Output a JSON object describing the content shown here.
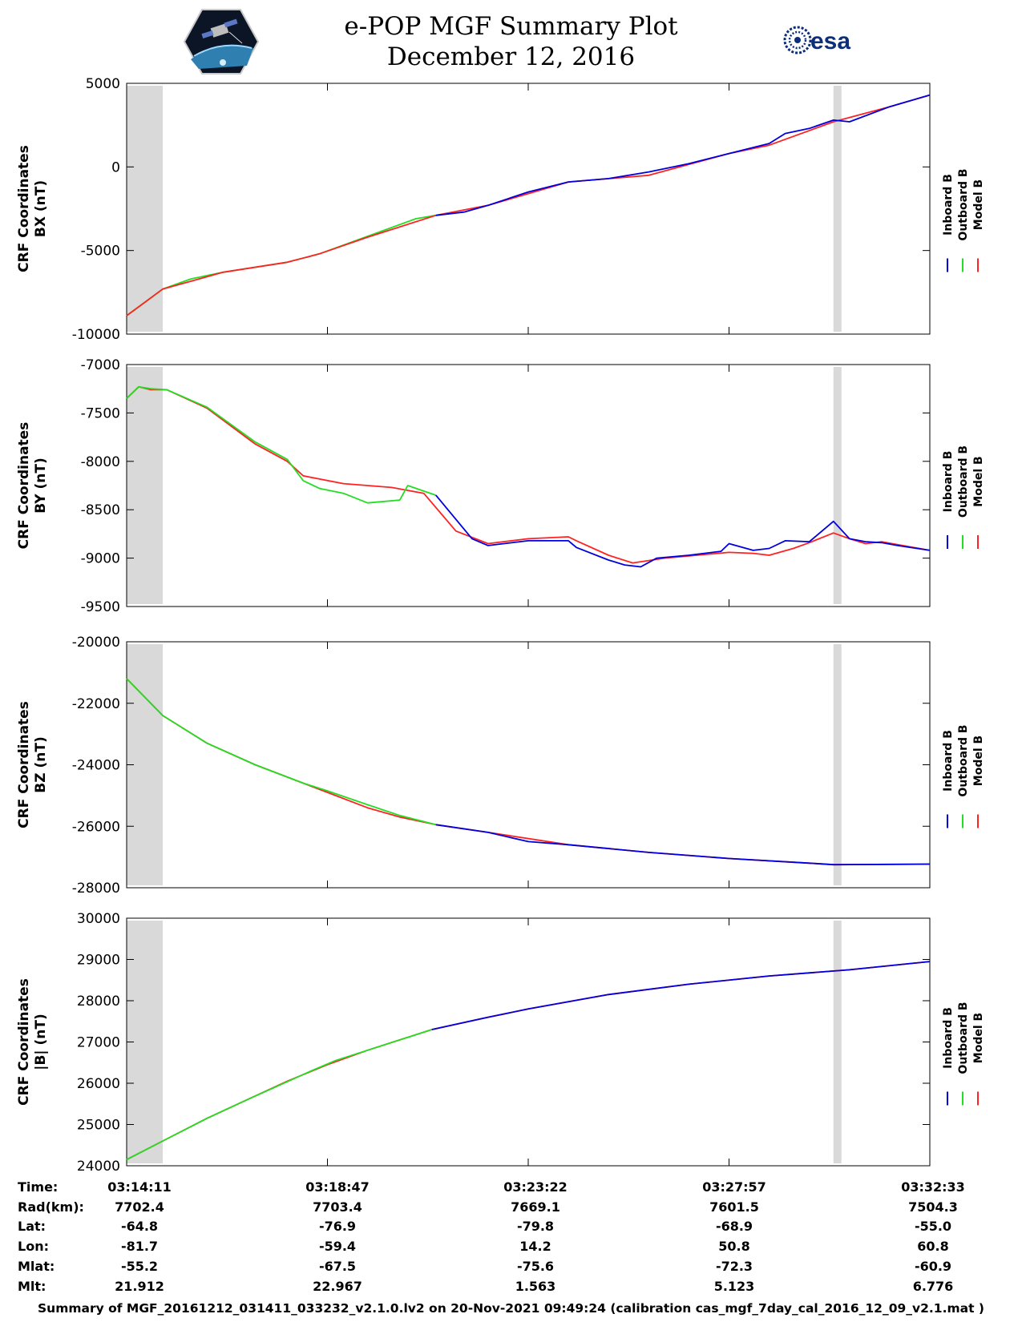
{
  "title": {
    "line1": "e-POP MGF Summary Plot",
    "line2": "December 12, 2016"
  },
  "logos": {
    "left": "CASSIOPE mission logo",
    "right_text": "esa"
  },
  "colors": {
    "inboard": "#0000dd",
    "outboard": "#22dd22",
    "model": "#ff2222",
    "shade": "#d9d9d9"
  },
  "legend": {
    "inboard": "Inboard B",
    "outboard": "Outboard B",
    "model": "Model B"
  },
  "chart_data": [
    {
      "type": "line",
      "id": "bx",
      "ylabel_line1": "CRF Coordinates",
      "ylabel_line2": "BX (nT)",
      "ylim": [
        -10000,
        5000
      ],
      "yticks": [
        -10000,
        -5000,
        0,
        5000
      ],
      "xlim": [
        0,
        100
      ],
      "xticks": [
        0,
        25,
        50,
        75,
        100
      ],
      "shaded": [
        [
          0,
          4.5
        ],
        [
          88,
          89
        ]
      ],
      "series": [
        {
          "name": "Outboard B",
          "key": "outboard",
          "x": [
            0,
            2,
            4.5,
            8,
            12,
            16,
            20,
            24,
            28,
            32,
            36,
            38.5
          ],
          "y": [
            -8900,
            -8200,
            -7300,
            -6700,
            -6300,
            -6000,
            -5700,
            -5200,
            -4500,
            -3800,
            -3100,
            -2900
          ]
        },
        {
          "name": "Model B",
          "key": "model",
          "x": [
            0,
            4.5,
            12,
            20,
            24,
            30,
            38.5,
            45,
            55,
            65,
            75,
            80,
            88,
            95,
            100
          ],
          "y": [
            -8900,
            -7300,
            -6300,
            -5700,
            -5200,
            -4200,
            -2900,
            -2300,
            -900,
            -500,
            800,
            1300,
            2700,
            3600,
            4300
          ]
        },
        {
          "name": "Inboard B",
          "key": "inboard",
          "x": [
            38.5,
            42,
            45,
            50,
            55,
            60,
            65,
            70,
            75,
            80,
            82,
            85,
            88,
            90,
            95,
            100
          ],
          "y": [
            -2900,
            -2700,
            -2300,
            -1500,
            -900,
            -700,
            -300,
            200,
            800,
            1400,
            2000,
            2300,
            2800,
            2700,
            3600,
            4300
          ]
        }
      ]
    },
    {
      "type": "line",
      "id": "by",
      "ylabel_line1": "CRF Coordinates",
      "ylabel_line2": "BY (nT)",
      "ylim": [
        -9500,
        -7000
      ],
      "yticks": [
        -9500,
        -9000,
        -8500,
        -8000,
        -7500,
        -7000
      ],
      "xlim": [
        0,
        100
      ],
      "xticks": [
        0,
        25,
        50,
        75,
        100
      ],
      "shaded": [
        [
          0,
          4.5
        ],
        [
          88,
          89
        ]
      ],
      "series": [
        {
          "name": "Model B",
          "key": "model",
          "x": [
            0,
            1.5,
            3,
            5,
            10,
            16,
            20,
            22,
            27,
            33,
            37,
            41,
            45,
            50,
            55,
            56,
            60,
            63,
            67,
            71,
            75,
            78,
            80,
            83,
            85,
            88,
            90,
            92,
            94,
            96,
            100
          ],
          "y": [
            -7350,
            -7230,
            -7260,
            -7260,
            -7450,
            -7820,
            -8000,
            -8150,
            -8230,
            -8270,
            -8330,
            -8720,
            -8850,
            -8800,
            -8780,
            -8820,
            -8970,
            -9050,
            -9000,
            -8970,
            -8940,
            -8950,
            -8970,
            -8900,
            -8840,
            -8740,
            -8800,
            -8850,
            -8830,
            -8860,
            -8920
          ]
        },
        {
          "name": "Outboard B",
          "key": "outboard",
          "x": [
            0,
            1.5,
            3,
            5,
            10,
            16,
            20,
            22,
            24,
            27,
            30,
            34,
            35,
            38.5
          ],
          "y": [
            -7350,
            -7230,
            -7250,
            -7260,
            -7440,
            -7800,
            -7980,
            -8200,
            -8280,
            -8330,
            -8430,
            -8400,
            -8250,
            -8350
          ]
        },
        {
          "name": "Inboard B",
          "key": "inboard",
          "x": [
            38.5,
            40,
            43,
            45,
            50,
            55,
            56,
            60,
            62,
            64,
            66,
            70,
            74,
            75,
            78,
            80,
            82,
            85,
            88,
            90,
            92,
            94,
            96,
            100
          ],
          "y": [
            -8350,
            -8500,
            -8800,
            -8870,
            -8820,
            -8820,
            -8890,
            -9020,
            -9070,
            -9090,
            -9000,
            -8970,
            -8930,
            -8850,
            -8920,
            -8900,
            -8820,
            -8830,
            -8620,
            -8800,
            -8830,
            -8840,
            -8870,
            -8920
          ]
        }
      ]
    },
    {
      "type": "line",
      "id": "bz",
      "ylabel_line1": "CRF Coordinates",
      "ylabel_line2": "BZ (nT)",
      "ylim": [
        -28000,
        -20000
      ],
      "yticks": [
        -28000,
        -26000,
        -24000,
        -22000,
        -20000
      ],
      "xlim": [
        0,
        100
      ],
      "xticks": [
        0,
        25,
        50,
        75,
        100
      ],
      "shaded": [
        [
          0,
          4.5
        ],
        [
          88,
          89
        ]
      ],
      "series": [
        {
          "name": "Model B",
          "key": "model",
          "x": [
            0,
            4.5,
            10,
            16,
            20,
            25,
            30,
            34,
            38.5,
            45,
            55,
            65,
            75,
            85,
            88,
            100
          ],
          "y": [
            -21200,
            -22400,
            -23300,
            -24000,
            -24400,
            -24900,
            -25400,
            -25700,
            -25950,
            -26200,
            -26600,
            -26850,
            -27050,
            -27200,
            -27250,
            -27230
          ]
        },
        {
          "name": "Outboard B",
          "key": "outboard",
          "x": [
            0,
            4.5,
            10,
            16,
            19,
            22,
            25,
            30,
            34,
            38.5
          ],
          "y": [
            -21200,
            -22400,
            -23300,
            -24000,
            -24300,
            -24600,
            -24850,
            -25300,
            -25650,
            -25950
          ]
        },
        {
          "name": "Inboard B",
          "key": "inboard",
          "x": [
            38.5,
            45,
            50,
            55,
            65,
            75,
            85,
            88,
            100
          ],
          "y": [
            -25950,
            -26200,
            -26500,
            -26600,
            -26850,
            -27050,
            -27200,
            -27250,
            -27230
          ]
        }
      ]
    },
    {
      "type": "line",
      "id": "bmag",
      "ylabel_line1": "CRF Coordinates",
      "ylabel_line2": "|B| (nT)",
      "ylim": [
        24000,
        30000
      ],
      "yticks": [
        24000,
        25000,
        26000,
        27000,
        28000,
        29000,
        30000
      ],
      "xlim": [
        0,
        100
      ],
      "xticks": [
        0,
        25,
        50,
        75,
        100
      ],
      "shaded": [
        [
          0,
          4.5
        ],
        [
          88,
          89
        ]
      ],
      "series": [
        {
          "name": "Model B",
          "key": "model",
          "x": [
            0,
            5,
            10,
            15,
            20,
            25,
            30,
            38,
            45,
            50,
            60,
            70,
            80,
            90,
            100
          ],
          "y": [
            24150,
            24650,
            25150,
            25600,
            26050,
            26450,
            26800,
            27300,
            27600,
            27800,
            28150,
            28400,
            28600,
            28750,
            28950
          ]
        },
        {
          "name": "Outboard B",
          "key": "outboard",
          "x": [
            0,
            5,
            10,
            15,
            19,
            23,
            26,
            30,
            34,
            38
          ],
          "y": [
            24150,
            24650,
            25150,
            25600,
            25950,
            26300,
            26550,
            26800,
            27050,
            27300
          ]
        },
        {
          "name": "Inboard B",
          "key": "inboard",
          "x": [
            38,
            45,
            50,
            60,
            70,
            80,
            90,
            100
          ],
          "y": [
            27300,
            27600,
            27800,
            28150,
            28400,
            28600,
            28750,
            28950
          ]
        }
      ]
    }
  ],
  "footer": {
    "labels": [
      "Time:",
      "Rad(km):",
      "Lat:",
      "Lon:",
      "Mlat:",
      "Mlt:"
    ],
    "columns": [
      [
        "03:14:11",
        "7702.4",
        "-64.8",
        "-81.7",
        "-55.2",
        "21.912"
      ],
      [
        "03:18:47",
        "7703.4",
        "-76.9",
        "-59.4",
        "-67.5",
        "22.967"
      ],
      [
        "03:23:22",
        "7669.1",
        "-79.8",
        "14.2",
        "-75.6",
        "1.563"
      ],
      [
        "03:27:57",
        "7601.5",
        "-68.9",
        "50.8",
        "-72.3",
        "5.123"
      ],
      [
        "03:32:33",
        "7504.3",
        "-55.0",
        "60.8",
        "-60.9",
        "6.776"
      ]
    ]
  },
  "summary": "Summary of MGF_20161212_031411_033232_v2.1.0.lv2 on 20-Nov-2021 09:49:24 (calibration cas_mgf_7day_cal_2016_12_09_v2.1.mat )"
}
